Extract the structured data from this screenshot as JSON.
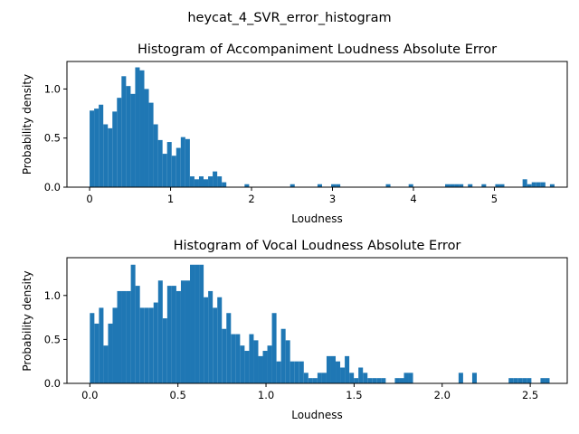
{
  "figure": {
    "suptitle": "heycat_4_SVR_error_histogram"
  },
  "colors": {
    "bar": "#1f77b4",
    "axis": "#000000"
  },
  "chart_data": [
    {
      "type": "bar",
      "title": "Histogram of Accompaniment Loudness Absolute Error",
      "xlabel": "Loudness",
      "ylabel": "Probability density",
      "xlim": [
        -0.28,
        5.9
      ],
      "ylim": [
        0,
        1.28
      ],
      "xticks": [
        0,
        1,
        2,
        3,
        4,
        5
      ],
      "xtick_labels": [
        "0",
        "1",
        "2",
        "3",
        "4",
        "5"
      ],
      "yticks": [
        0,
        0.5,
        1.0
      ],
      "ytick_labels": [
        "0.0",
        "0.5",
        "1.0"
      ],
      "grid": false,
      "bin_start": 0.0,
      "bin_width": 0.0563,
      "values": [
        0.78,
        0.8,
        0.84,
        0.64,
        0.6,
        0.77,
        0.91,
        1.13,
        1.03,
        0.95,
        1.22,
        1.19,
        1.0,
        0.86,
        0.64,
        0.48,
        0.34,
        0.46,
        0.32,
        0.4,
        0.51,
        0.49,
        0.11,
        0.08,
        0.11,
        0.08,
        0.11,
        0.16,
        0.11,
        0.05,
        0,
        0,
        0,
        0,
        0.03,
        0,
        0,
        0,
        0,
        0,
        0,
        0,
        0,
        0,
        0.03,
        0,
        0,
        0,
        0,
        0,
        0.03,
        0,
        0,
        0.03,
        0.03,
        0,
        0,
        0,
        0,
        0,
        0,
        0,
        0,
        0,
        0,
        0.03,
        0,
        0,
        0,
        0,
        0.03,
        0,
        0,
        0,
        0,
        0,
        0,
        0,
        0.03,
        0.03,
        0.03,
        0.03,
        0,
        0.03,
        0,
        0,
        0.03,
        0,
        0,
        0.03,
        0.03,
        0,
        0,
        0,
        0,
        0.08,
        0.03,
        0.05,
        0.05,
        0.05,
        0,
        0.03
      ]
    },
    {
      "type": "bar",
      "title": "Histogram of Vocal Loudness Absolute Error",
      "xlabel": "Loudness",
      "ylabel": "Probability density",
      "xlim": [
        -0.13,
        2.71
      ],
      "ylim": [
        0,
        1.43
      ],
      "xticks": [
        0,
        0.5,
        1.0,
        1.5,
        2.0,
        2.5
      ],
      "xtick_labels": [
        "0.0",
        "0.5",
        "1.0",
        "1.5",
        "2.0",
        "2.5"
      ],
      "yticks": [
        0,
        0.5,
        1.0
      ],
      "ytick_labels": [
        "0.0",
        "0.5",
        "1.0"
      ],
      "grid": false,
      "bin_start": 0.0,
      "bin_width": 0.02584,
      "values": [
        0.8,
        0.68,
        0.86,
        0.43,
        0.68,
        0.86,
        1.05,
        1.05,
        1.05,
        1.35,
        1.11,
        0.86,
        0.86,
        0.86,
        0.92,
        1.17,
        0.74,
        1.11,
        1.11,
        1.05,
        1.17,
        1.17,
        1.35,
        1.35,
        1.35,
        0.98,
        1.05,
        0.86,
        0.98,
        0.62,
        0.8,
        0.56,
        0.56,
        0.43,
        0.37,
        0.56,
        0.49,
        0.31,
        0.37,
        0.43,
        0.8,
        0.25,
        0.62,
        0.49,
        0.25,
        0.25,
        0.25,
        0.12,
        0.06,
        0.06,
        0.12,
        0.12,
        0.31,
        0.31,
        0.25,
        0.18,
        0.31,
        0.12,
        0.06,
        0.18,
        0.12,
        0.06,
        0.06,
        0.06,
        0.06,
        0,
        0,
        0.06,
        0.06,
        0.12,
        0.12,
        0,
        0,
        0,
        0,
        0,
        0,
        0,
        0,
        0,
        0,
        0.12,
        0,
        0,
        0.12,
        0,
        0,
        0,
        0,
        0,
        0,
        0,
        0.06,
        0.06,
        0.06,
        0.06,
        0.06,
        0,
        0,
        0.06,
        0.06
      ]
    }
  ]
}
